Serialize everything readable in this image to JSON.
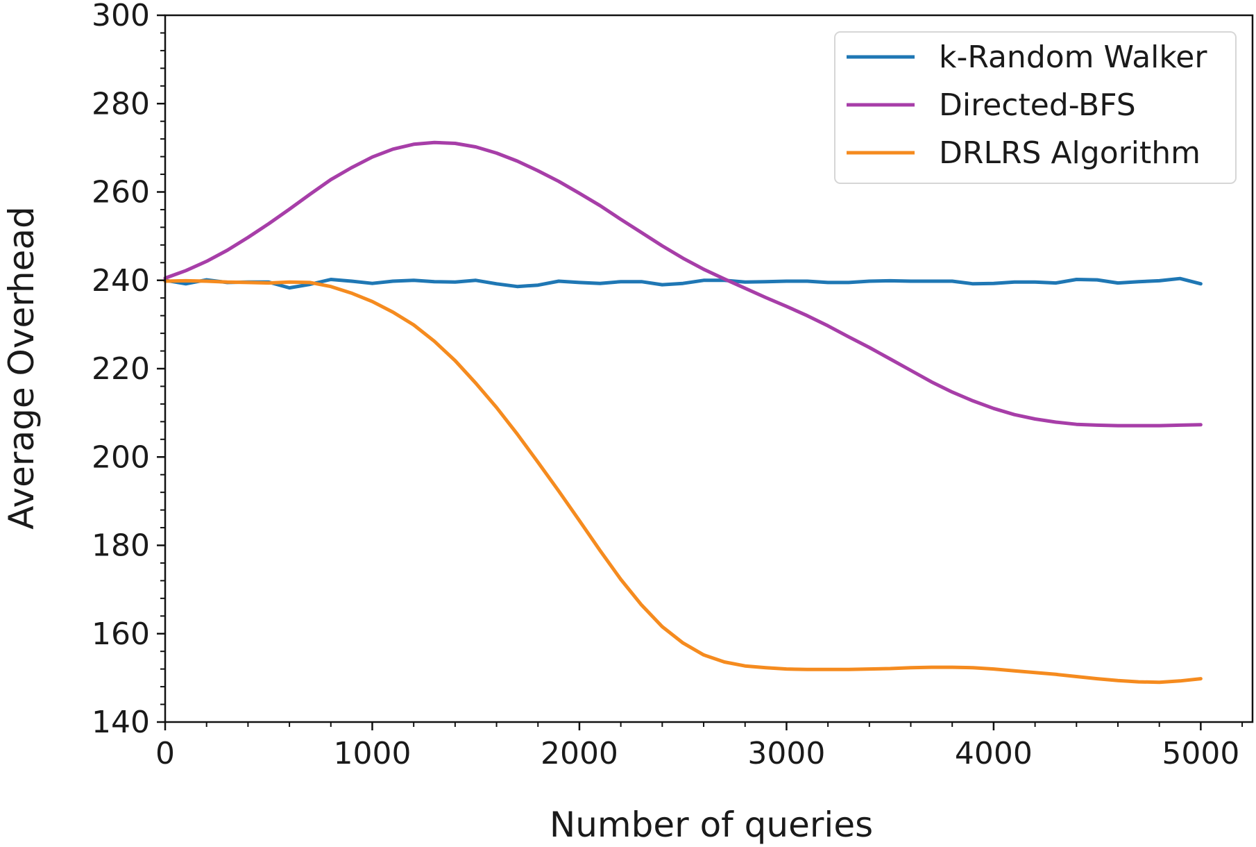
{
  "chart_data": {
    "type": "line",
    "title": "",
    "xlabel": "Number of queries",
    "ylabel": "Average Overhead",
    "xlim": [
      0,
      5250
    ],
    "ylim": [
      140,
      300
    ],
    "x_ticks": [
      0,
      1000,
      2000,
      3000,
      4000,
      5000
    ],
    "y_ticks": [
      140,
      160,
      180,
      200,
      220,
      240,
      260,
      280,
      300
    ],
    "x_tick_labels": [
      "0",
      "1000",
      "2000",
      "3000",
      "4000",
      "5000"
    ],
    "y_tick_labels": [
      "140",
      "160",
      "180",
      "200",
      "220",
      "240",
      "260",
      "280",
      "300"
    ],
    "grid": false,
    "legend_position": "top-right",
    "x": [
      0,
      100,
      200,
      300,
      400,
      500,
      600,
      700,
      800,
      900,
      1000,
      1100,
      1200,
      1300,
      1400,
      1500,
      1600,
      1700,
      1800,
      1900,
      2000,
      2100,
      2200,
      2300,
      2400,
      2500,
      2600,
      2700,
      2800,
      2900,
      3000,
      3100,
      3200,
      3300,
      3400,
      3500,
      3600,
      3700,
      3800,
      3900,
      4000,
      4100,
      4200,
      4300,
      4400,
      4500,
      4600,
      4700,
      4800,
      4900,
      5000
    ],
    "series": [
      {
        "name": "k-Random Walker",
        "color": "#1f77b4",
        "values": [
          240.0,
          239.2,
          240.1,
          239.5,
          239.6,
          239.6,
          238.3,
          239.1,
          240.2,
          239.8,
          239.3,
          239.8,
          240.0,
          239.7,
          239.6,
          240.0,
          239.2,
          238.6,
          238.9,
          239.8,
          239.5,
          239.3,
          239.7,
          239.7,
          239.0,
          239.3,
          240.0,
          240.0,
          239.6,
          239.7,
          239.8,
          239.8,
          239.5,
          239.5,
          239.8,
          239.9,
          239.8,
          239.8,
          239.8,
          239.2,
          239.3,
          239.6,
          239.6,
          239.4,
          240.2,
          240.1,
          239.4,
          239.7,
          239.9,
          240.4,
          239.2
        ]
      },
      {
        "name": "Directed-BFS",
        "color": "#a73ea8",
        "values": [
          240.5,
          242.2,
          244.3,
          246.8,
          249.7,
          252.8,
          256.1,
          259.5,
          262.8,
          265.5,
          267.9,
          269.7,
          270.8,
          271.2,
          271.0,
          270.2,
          268.8,
          267.0,
          264.8,
          262.4,
          259.7,
          256.9,
          253.8,
          250.8,
          247.8,
          245.0,
          242.5,
          240.3,
          238.2,
          236.1,
          234.1,
          232.0,
          229.7,
          227.2,
          224.8,
          222.2,
          219.6,
          217.0,
          214.7,
          212.7,
          211.0,
          209.6,
          208.6,
          207.9,
          207.4,
          207.2,
          207.1,
          207.1,
          207.1,
          207.2,
          207.3
        ]
      },
      {
        "name": "DRLRS Algorithm",
        "color": "#f58b1f",
        "values": [
          239.8,
          239.9,
          239.8,
          239.6,
          239.5,
          239.4,
          239.6,
          239.5,
          238.6,
          237.1,
          235.2,
          232.8,
          229.9,
          226.2,
          221.8,
          216.7,
          211.2,
          205.2,
          198.8,
          192.3,
          185.6,
          178.8,
          172.3,
          166.5,
          161.6,
          157.9,
          155.2,
          153.6,
          152.7,
          152.3,
          152.0,
          151.9,
          151.9,
          151.9,
          152.0,
          152.1,
          152.3,
          152.4,
          152.4,
          152.3,
          152.0,
          151.6,
          151.2,
          150.8,
          150.3,
          149.8,
          149.4,
          149.1,
          149.0,
          149.3,
          149.8
        ]
      }
    ]
  }
}
